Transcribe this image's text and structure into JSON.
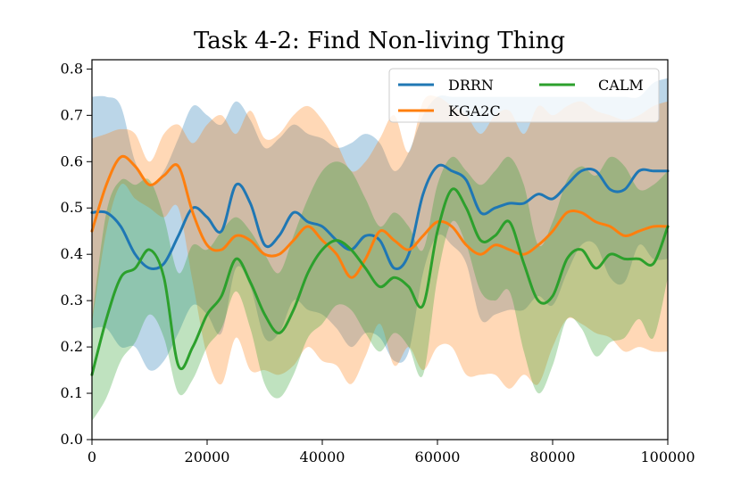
{
  "chart_data": {
    "type": "line",
    "title": "Task 4-2: Find Non-living Thing",
    "xlabel": "",
    "ylabel": "",
    "xlim": [
      0,
      100000
    ],
    "ylim": [
      0.0,
      0.82
    ],
    "x_ticks": [
      0,
      20000,
      40000,
      60000,
      80000,
      100000
    ],
    "x_tick_labels": [
      "0",
      "20000",
      "40000",
      "60000",
      "80000",
      "100000"
    ],
    "y_ticks": [
      0.0,
      0.1,
      0.2,
      0.3,
      0.4,
      0.5,
      0.6,
      0.7,
      0.8
    ],
    "y_tick_labels": [
      "0.0",
      "0.1",
      "0.2",
      "0.3",
      "0.4",
      "0.5",
      "0.6",
      "0.7",
      "0.8"
    ],
    "grid": false,
    "legend_position": "top-right",
    "x": [
      0,
      2500,
      5000,
      7500,
      10000,
      12500,
      15000,
      17500,
      20000,
      22500,
      25000,
      27500,
      30000,
      32500,
      35000,
      37500,
      40000,
      42500,
      45000,
      47500,
      50000,
      52500,
      55000,
      57500,
      60000,
      62500,
      65000,
      67500,
      70000,
      72500,
      75000,
      77500,
      80000,
      82500,
      85000,
      87500,
      90000,
      92500,
      95000,
      97500,
      100000
    ],
    "series": [
      {
        "name": "DRRN",
        "color": "#1f77b4",
        "values": [
          0.49,
          0.49,
          0.46,
          0.4,
          0.37,
          0.38,
          0.44,
          0.5,
          0.48,
          0.45,
          0.55,
          0.51,
          0.42,
          0.44,
          0.49,
          0.47,
          0.46,
          0.43,
          0.41,
          0.44,
          0.43,
          0.37,
          0.4,
          0.53,
          0.59,
          0.58,
          0.56,
          0.49,
          0.5,
          0.51,
          0.51,
          0.53,
          0.52,
          0.55,
          0.58,
          0.58,
          0.54,
          0.54,
          0.58,
          0.58,
          0.58
        ],
        "upper": [
          0.74,
          0.74,
          0.72,
          0.6,
          0.55,
          0.58,
          0.65,
          0.72,
          0.7,
          0.68,
          0.73,
          0.69,
          0.63,
          0.65,
          0.68,
          0.66,
          0.65,
          0.63,
          0.64,
          0.66,
          0.64,
          0.58,
          0.62,
          0.7,
          0.74,
          0.74,
          0.74,
          0.74,
          0.74,
          0.74,
          0.74,
          0.74,
          0.74,
          0.74,
          0.74,
          0.74,
          0.74,
          0.74,
          0.74,
          0.77,
          0.78
        ],
        "lower": [
          0.24,
          0.24,
          0.2,
          0.2,
          0.15,
          0.17,
          0.23,
          0.29,
          0.27,
          0.23,
          0.37,
          0.33,
          0.22,
          0.23,
          0.3,
          0.28,
          0.27,
          0.24,
          0.2,
          0.23,
          0.22,
          0.17,
          0.19,
          0.36,
          0.44,
          0.42,
          0.38,
          0.26,
          0.27,
          0.28,
          0.28,
          0.31,
          0.29,
          0.36,
          0.42,
          0.42,
          0.35,
          0.34,
          0.42,
          0.39,
          0.39
        ]
      },
      {
        "name": "KGA2C",
        "color": "#ff7f0e",
        "values": [
          0.45,
          0.55,
          0.61,
          0.59,
          0.55,
          0.57,
          0.59,
          0.49,
          0.42,
          0.41,
          0.44,
          0.43,
          0.4,
          0.4,
          0.43,
          0.46,
          0.43,
          0.4,
          0.35,
          0.39,
          0.45,
          0.43,
          0.41,
          0.44,
          0.47,
          0.46,
          0.42,
          0.4,
          0.42,
          0.41,
          0.4,
          0.42,
          0.45,
          0.49,
          0.49,
          0.47,
          0.46,
          0.44,
          0.45,
          0.46,
          0.46
        ],
        "upper": [
          0.65,
          0.66,
          0.67,
          0.66,
          0.6,
          0.66,
          0.68,
          0.64,
          0.68,
          0.7,
          0.66,
          0.71,
          0.65,
          0.66,
          0.7,
          0.72,
          0.69,
          0.64,
          0.58,
          0.6,
          0.65,
          0.7,
          0.62,
          0.73,
          0.74,
          0.72,
          0.7,
          0.66,
          0.7,
          0.71,
          0.66,
          0.72,
          0.7,
          0.72,
          0.73,
          0.71,
          0.7,
          0.69,
          0.7,
          0.72,
          0.73
        ],
        "lower": [
          0.25,
          0.45,
          0.55,
          0.52,
          0.5,
          0.48,
          0.5,
          0.34,
          0.18,
          0.12,
          0.22,
          0.15,
          0.15,
          0.14,
          0.16,
          0.2,
          0.17,
          0.16,
          0.12,
          0.18,
          0.25,
          0.16,
          0.2,
          0.15,
          0.2,
          0.2,
          0.14,
          0.14,
          0.14,
          0.11,
          0.14,
          0.12,
          0.2,
          0.26,
          0.25,
          0.23,
          0.22,
          0.19,
          0.2,
          0.19,
          0.19
        ]
      },
      {
        "name": "CALM",
        "color": "#2ca02c",
        "values": [
          0.14,
          0.26,
          0.35,
          0.37,
          0.41,
          0.35,
          0.16,
          0.2,
          0.27,
          0.31,
          0.39,
          0.34,
          0.27,
          0.23,
          0.28,
          0.36,
          0.41,
          0.43,
          0.41,
          0.37,
          0.33,
          0.35,
          0.33,
          0.29,
          0.45,
          0.54,
          0.5,
          0.43,
          0.44,
          0.47,
          0.38,
          0.3,
          0.31,
          0.39,
          0.41,
          0.37,
          0.4,
          0.39,
          0.39,
          0.38,
          0.46
        ],
        "upper": [
          0.26,
          0.49,
          0.56,
          0.55,
          0.56,
          0.48,
          0.36,
          0.42,
          0.41,
          0.45,
          0.48,
          0.45,
          0.4,
          0.36,
          0.44,
          0.52,
          0.58,
          0.6,
          0.58,
          0.52,
          0.46,
          0.49,
          0.46,
          0.41,
          0.55,
          0.61,
          0.58,
          0.55,
          0.58,
          0.61,
          0.55,
          0.42,
          0.47,
          0.56,
          0.59,
          0.57,
          0.61,
          0.59,
          0.54,
          0.55,
          0.58
        ],
        "lower": [
          0.04,
          0.09,
          0.17,
          0.21,
          0.27,
          0.22,
          0.1,
          0.13,
          0.2,
          0.24,
          0.32,
          0.24,
          0.12,
          0.09,
          0.14,
          0.22,
          0.25,
          0.29,
          0.28,
          0.23,
          0.19,
          0.23,
          0.2,
          0.14,
          0.35,
          0.47,
          0.42,
          0.32,
          0.3,
          0.32,
          0.19,
          0.1,
          0.16,
          0.26,
          0.24,
          0.18,
          0.21,
          0.22,
          0.26,
          0.22,
          0.35
        ]
      }
    ]
  }
}
